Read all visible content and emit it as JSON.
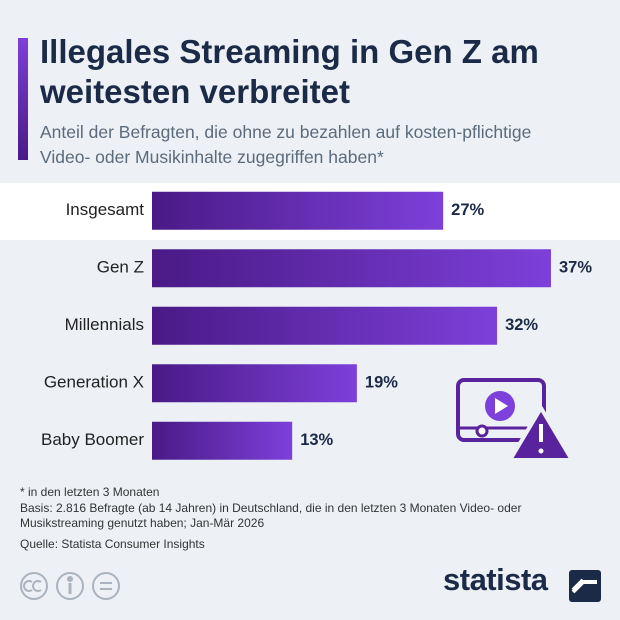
{
  "chart_data": {
    "type": "bar",
    "orientation": "horizontal",
    "title": "Illegales Streaming in Gen Z am weitesten verbreitet",
    "subtitle": "Anteil der Befragten, die ohne zu bezahlen auf kosten-pflichtige Video- oder Musikinhalte zugegriffen haben*",
    "categories": [
      "Insgesamt",
      "Gen Z",
      "Millennials",
      "Generation X",
      "Baby Boomer"
    ],
    "values": [
      27,
      37,
      32,
      19,
      13
    ],
    "value_labels": [
      "27%",
      "37%",
      "32%",
      "19%",
      "13%"
    ],
    "gradient": [
      "#4a1a86",
      "#7d40da"
    ]
  },
  "notes": {
    "footnote": "* in den letzten 3 Monaten",
    "basis": "Basis: 2.816 Befragte (ab 14 Jahren) in Deutschland, die in den letzten 3 Monaten Video- oder Musikstreaming genutzt haben; Jan-Mär 2026",
    "source": "Quelle: Statista Consumer Insights"
  },
  "logo": "statista"
}
